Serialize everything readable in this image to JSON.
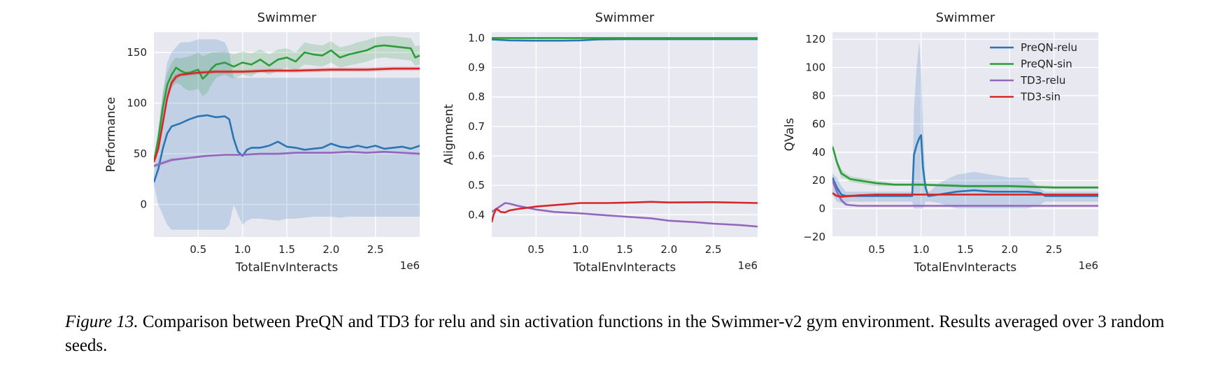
{
  "caption": {
    "label": "Figure 13.",
    "text": "Comparison between PreQN and TD3 for relu and sin activation functions in the Swimmer-v2 gym environment. Results averaged over 3 random seeds."
  },
  "colors": {
    "PreQN-relu": "#2a75b3",
    "PreQN-sin": "#2c9d3a",
    "TD3-relu": "#9467bd",
    "TD3-sin": "#d62728",
    "plot_bg": "#e8e8f0",
    "grid": "#ffffff"
  },
  "chart_data": [
    {
      "type": "line",
      "title": "Swimmer",
      "xlabel": "TotalEnvInteracts",
      "ylabel": "Performance",
      "x_multiplier_label": "1e6",
      "xlim": [
        0,
        3.0
      ],
      "ylim": [
        -32,
        170
      ],
      "xticks": [
        0.5,
        1.0,
        1.5,
        2.0,
        2.5
      ],
      "xtick_labels": [
        "0.5",
        "1.0",
        "1.5",
        "2.0",
        "2.5"
      ],
      "yticks": [
        0,
        50,
        100,
        150
      ],
      "ytick_labels": [
        "0",
        "50",
        "100",
        "150"
      ],
      "grid": true,
      "legend": false,
      "series": [
        {
          "name": "PreQN-relu",
          "x": [
            0,
            0.05,
            0.1,
            0.15,
            0.2,
            0.3,
            0.4,
            0.5,
            0.6,
            0.7,
            0.8,
            0.85,
            0.9,
            0.95,
            1.0,
            1.05,
            1.1,
            1.2,
            1.3,
            1.4,
            1.5,
            1.6,
            1.7,
            1.8,
            1.9,
            2.0,
            2.1,
            2.2,
            2.3,
            2.4,
            2.5,
            2.6,
            2.7,
            2.8,
            2.9,
            3.0
          ],
          "y": [
            22,
            35,
            55,
            70,
            77,
            80,
            84,
            87,
            88,
            86,
            87,
            84,
            65,
            52,
            48,
            54,
            56,
            56,
            58,
            62,
            57,
            56,
            54,
            55,
            56,
            60,
            57,
            56,
            58,
            56,
            58,
            55,
            56,
            57,
            55,
            58
          ],
          "band_low": [
            20,
            0,
            -10,
            -20,
            -25,
            -25,
            -25,
            -25,
            -25,
            -25,
            -25,
            -20,
            0,
            -10,
            -20,
            -16,
            -14,
            -14,
            -15,
            -16,
            -14,
            -14,
            -13,
            -12,
            -12,
            -12,
            -13,
            -12,
            -12,
            -12,
            -12,
            -12,
            -12,
            -12,
            -12,
            -12
          ],
          "band_high": [
            30,
            70,
            110,
            140,
            150,
            160,
            160,
            163,
            163,
            163,
            160,
            150,
            125,
            125,
            125,
            125,
            125,
            125,
            125,
            125,
            125,
            125,
            125,
            125,
            125,
            125,
            125,
            125,
            125,
            125,
            125,
            125,
            125,
            125,
            125,
            125
          ]
        },
        {
          "name": "PreQN-sin",
          "x": [
            0,
            0.05,
            0.1,
            0.15,
            0.2,
            0.25,
            0.3,
            0.35,
            0.4,
            0.5,
            0.55,
            0.6,
            0.65,
            0.7,
            0.8,
            0.9,
            1.0,
            1.1,
            1.2,
            1.3,
            1.4,
            1.5,
            1.6,
            1.7,
            1.8,
            1.9,
            2.0,
            2.1,
            2.2,
            2.3,
            2.4,
            2.5,
            2.6,
            2.7,
            2.8,
            2.9,
            2.95,
            3.0
          ],
          "y": [
            42,
            65,
            95,
            118,
            128,
            135,
            132,
            130,
            130,
            133,
            124,
            128,
            134,
            138,
            140,
            136,
            140,
            138,
            143,
            137,
            143,
            145,
            141,
            150,
            148,
            147,
            152,
            145,
            148,
            150,
            152,
            156,
            157,
            156,
            155,
            154,
            145,
            147
          ],
          "band_low": [
            40,
            55,
            80,
            105,
            115,
            120,
            118,
            114,
            112,
            114,
            107,
            110,
            118,
            125,
            128,
            124,
            128,
            126,
            132,
            128,
            132,
            135,
            132,
            138,
            137,
            136,
            140,
            135,
            137,
            139,
            141,
            144,
            145,
            144,
            143,
            142,
            137,
            138
          ],
          "band_high": [
            45,
            75,
            110,
            130,
            140,
            145,
            144,
            145,
            146,
            150,
            146,
            148,
            150,
            150,
            151,
            148,
            151,
            149,
            153,
            148,
            153,
            154,
            150,
            160,
            158,
            157,
            161,
            155,
            157,
            160,
            162,
            165,
            166,
            166,
            165,
            164,
            156,
            157
          ]
        },
        {
          "name": "TD3-relu",
          "x": [
            0,
            0.1,
            0.2,
            0.3,
            0.4,
            0.5,
            0.6,
            0.8,
            1.0,
            1.2,
            1.4,
            1.6,
            1.8,
            2.0,
            2.2,
            2.4,
            2.6,
            2.8,
            3.0
          ],
          "y": [
            38,
            41,
            44,
            45,
            46,
            47,
            48,
            49,
            49,
            50,
            50,
            51,
            51,
            51,
            52,
            51,
            52,
            51,
            50
          ],
          "band_low": [
            36,
            39,
            42,
            44,
            45,
            46,
            47,
            48,
            48,
            49,
            49,
            50,
            50,
            50,
            51,
            50,
            51,
            50,
            49
          ],
          "band_high": [
            40,
            43,
            46,
            46,
            47,
            48,
            49,
            50,
            50,
            51,
            51,
            52,
            52,
            52,
            53,
            52,
            53,
            52,
            51
          ]
        },
        {
          "name": "TD3-sin",
          "x": [
            0,
            0.05,
            0.1,
            0.15,
            0.2,
            0.25,
            0.3,
            0.4,
            0.5,
            0.7,
            1.0,
            1.3,
            1.6,
            2.0,
            2.4,
            2.7,
            3.0
          ],
          "y": [
            42,
            55,
            80,
            105,
            120,
            126,
            128,
            129,
            130,
            131,
            131,
            132,
            132,
            133,
            133,
            134,
            134
          ],
          "band_low": [
            40,
            52,
            75,
            100,
            116,
            123,
            126,
            127,
            128,
            129,
            129,
            130,
            130,
            131,
            131,
            132,
            132
          ],
          "band_high": [
            44,
            58,
            85,
            110,
            124,
            129,
            130,
            131,
            132,
            133,
            133,
            134,
            134,
            135,
            135,
            136,
            136
          ]
        }
      ]
    },
    {
      "type": "line",
      "title": "Swimmer",
      "xlabel": "TotalEnvInteracts",
      "ylabel": "Alignment",
      "x_multiplier_label": "1e6",
      "xlim": [
        0,
        3.0
      ],
      "ylim": [
        0.325,
        1.02
      ],
      "xticks": [
        0.5,
        1.0,
        1.5,
        2.0,
        2.5
      ],
      "xtick_labels": [
        "0.5",
        "1.0",
        "1.5",
        "2.0",
        "2.5"
      ],
      "yticks": [
        0.4,
        0.5,
        0.6,
        0.7,
        0.8,
        0.9,
        1.0
      ],
      "ytick_labels": [
        "0.4",
        "0.5",
        "0.6",
        "0.7",
        "0.8",
        "0.9",
        "1.0"
      ],
      "grid": true,
      "legend": false,
      "series": [
        {
          "name": "PreQN-relu",
          "x": [
            0,
            0.2,
            0.5,
            0.8,
            1.0,
            1.2,
            1.5,
            2.0,
            2.5,
            3.0
          ],
          "y": [
            0.995,
            0.992,
            0.991,
            0.991,
            0.992,
            0.995,
            0.996,
            0.996,
            0.996,
            0.996
          ]
        },
        {
          "name": "PreQN-sin",
          "x": [
            0,
            0.5,
            1.0,
            1.5,
            2.0,
            2.5,
            3.0
          ],
          "y": [
            1.0,
            1.0,
            1.0,
            1.0,
            1.0,
            1.0,
            1.0
          ]
        },
        {
          "name": "TD3-relu",
          "x": [
            0,
            0.05,
            0.1,
            0.15,
            0.2,
            0.3,
            0.5,
            0.7,
            1.0,
            1.3,
            1.5,
            1.8,
            2.0,
            2.3,
            2.5,
            2.8,
            3.0
          ],
          "y": [
            0.41,
            0.42,
            0.43,
            0.44,
            0.438,
            0.43,
            0.418,
            0.41,
            0.405,
            0.398,
            0.394,
            0.388,
            0.38,
            0.375,
            0.37,
            0.365,
            0.36
          ]
        },
        {
          "name": "TD3-sin",
          "x": [
            0,
            0.02,
            0.05,
            0.08,
            0.1,
            0.15,
            0.2,
            0.3,
            0.5,
            0.8,
            1.0,
            1.3,
            1.6,
            1.8,
            2.0,
            2.5,
            3.0
          ],
          "y": [
            0.375,
            0.4,
            0.42,
            0.415,
            0.41,
            0.408,
            0.415,
            0.42,
            0.428,
            0.435,
            0.44,
            0.44,
            0.442,
            0.444,
            0.442,
            0.443,
            0.44
          ]
        }
      ]
    },
    {
      "type": "line",
      "title": "Swimmer",
      "xlabel": "TotalEnvInteracts",
      "ylabel": "QVals",
      "x_multiplier_label": "1e6",
      "xlim": [
        0,
        3.0
      ],
      "ylim": [
        -20,
        125
      ],
      "xticks": [
        0.5,
        1.0,
        1.5,
        2.0,
        2.5
      ],
      "xtick_labels": [
        "0.5",
        "1.0",
        "1.5",
        "2.0",
        "2.5"
      ],
      "yticks": [
        -20,
        0,
        20,
        40,
        60,
        80,
        100,
        120
      ],
      "ytick_labels": [
        "−20",
        "0",
        "20",
        "40",
        "60",
        "80",
        "100",
        "120"
      ],
      "grid": true,
      "legend": true,
      "legend_position": "top-right",
      "legend_entries": [
        "PreQN-relu",
        "PreQN-sin",
        "TD3-relu",
        "TD3-sin"
      ],
      "series": [
        {
          "name": "PreQN-relu",
          "x": [
            0,
            0.05,
            0.1,
            0.15,
            0.2,
            0.3,
            0.5,
            0.7,
            0.9,
            0.92,
            0.95,
            0.98,
            1.0,
            1.02,
            1.05,
            1.08,
            1.1,
            1.2,
            1.4,
            1.6,
            1.8,
            2.0,
            2.2,
            2.35,
            2.4,
            2.6,
            3.0
          ],
          "y": [
            22,
            15,
            10,
            9,
            9,
            9,
            9,
            9,
            9,
            38,
            45,
            50,
            52,
            30,
            15,
            9,
            9,
            10,
            12,
            13,
            12,
            12,
            12,
            11,
            9,
            9,
            9
          ],
          "band_low": [
            10,
            5,
            4,
            4,
            5,
            5,
            5,
            5,
            5,
            0,
            0,
            0,
            0,
            0,
            5,
            5,
            5,
            4,
            0,
            0,
            0,
            0,
            0,
            3,
            5,
            5,
            5
          ],
          "band_high": [
            25,
            22,
            16,
            12,
            12,
            12,
            12,
            12,
            12,
            70,
            100,
            118,
            100,
            60,
            20,
            12,
            12,
            18,
            24,
            26,
            24,
            22,
            22,
            14,
            12,
            12,
            12
          ]
        },
        {
          "name": "PreQN-sin",
          "x": [
            0,
            0.02,
            0.05,
            0.1,
            0.15,
            0.2,
            0.3,
            0.4,
            0.5,
            0.7,
            1.0,
            1.5,
            2.0,
            2.5,
            3.0
          ],
          "y": [
            44,
            40,
            33,
            25,
            23,
            21,
            20,
            19,
            18,
            17,
            17,
            16,
            16,
            15,
            15
          ],
          "band_low": [
            42,
            38,
            30,
            22,
            21,
            19,
            18,
            17,
            16,
            16,
            16,
            15,
            15,
            14,
            14
          ],
          "band_high": [
            46,
            42,
            35,
            28,
            25,
            23,
            22,
            21,
            20,
            18,
            18,
            17,
            17,
            16,
            16
          ]
        },
        {
          "name": "TD3-relu",
          "x": [
            0,
            0.05,
            0.1,
            0.15,
            0.2,
            0.3,
            0.5,
            1.0,
            1.5,
            2.0,
            2.5,
            3.0
          ],
          "y": [
            20,
            12,
            6,
            3,
            2.5,
            2,
            2,
            2,
            2,
            2,
            2,
            2
          ],
          "band_low": [
            18,
            10,
            5,
            2,
            2,
            1.5,
            1.5,
            1.5,
            1.5,
            1.5,
            1.5,
            1.5
          ],
          "band_high": [
            22,
            14,
            8,
            4,
            3,
            2.5,
            2.5,
            2.5,
            2.5,
            2.5,
            2.5,
            2.5
          ]
        },
        {
          "name": "TD3-sin",
          "x": [
            0,
            0.05,
            0.1,
            0.2,
            0.3,
            0.5,
            1.0,
            1.5,
            2.0,
            2.5,
            3.0
          ],
          "y": [
            11,
            9,
            8.5,
            9,
            9.5,
            10,
            10,
            10,
            10,
            10,
            10
          ],
          "band_low": [
            10,
            8,
            7.5,
            8,
            9,
            9.5,
            9.5,
            9.5,
            9.5,
            9.5,
            9.5
          ],
          "band_high": [
            12,
            10,
            9.5,
            10,
            10,
            10.5,
            10.5,
            10.5,
            10.5,
            10.5,
            10.5
          ]
        }
      ]
    }
  ]
}
